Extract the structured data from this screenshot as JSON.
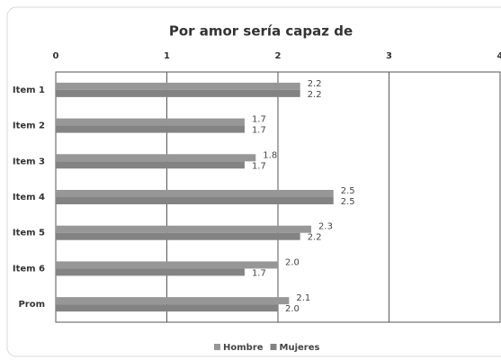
{
  "chart_data": {
    "type": "bar",
    "orientation": "horizontal",
    "title": "Por amor sería capaz de",
    "categories": [
      "Item 1",
      "Item 2",
      "Item 3",
      "Item 4",
      "Item 5",
      "Item 6",
      "Prom"
    ],
    "series": [
      {
        "name": "Hombre",
        "color": "#979797",
        "values": [
          2.2,
          1.7,
          1.8,
          2.5,
          2.3,
          2.0,
          2.1
        ],
        "value_labels": [
          "2.2",
          "1.7",
          "1.8",
          "2.5",
          "2.3",
          "2.0",
          "2.1"
        ]
      },
      {
        "name": "Mujeres",
        "color": "#838383",
        "values": [
          2.2,
          1.7,
          1.7,
          2.5,
          2.2,
          1.7,
          2.0
        ],
        "value_labels": [
          "2.2",
          "1.7",
          "1.7",
          "2.5",
          "2.2",
          "1.7",
          "2.0"
        ]
      }
    ],
    "xlim": [
      0,
      4
    ],
    "xticks": [
      0,
      1,
      2,
      3,
      4
    ],
    "grid": true,
    "legend": "bottom"
  }
}
